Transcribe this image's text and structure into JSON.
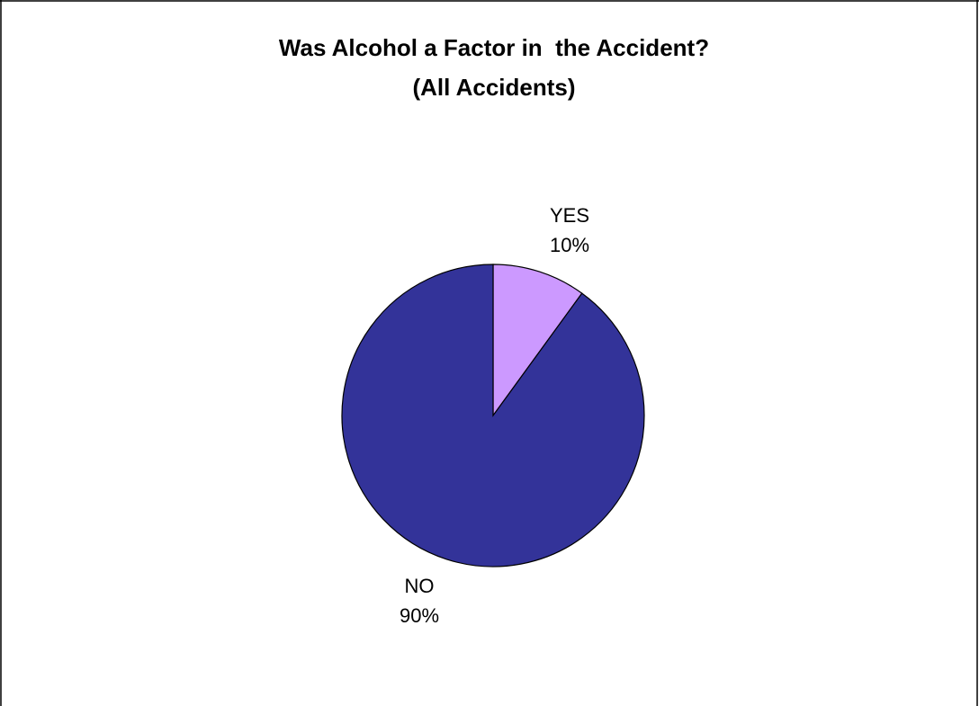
{
  "chart_data": {
    "type": "pie",
    "title": "Was Alcohol a Factor in  the Accident?",
    "subtitle": "(All Accidents)",
    "slices": [
      {
        "label": "YES",
        "value": 10,
        "percent_label": "10%",
        "color": "#CC99FF"
      },
      {
        "label": "NO",
        "value": 90,
        "percent_label": "90%",
        "color": "#333399"
      }
    ]
  }
}
